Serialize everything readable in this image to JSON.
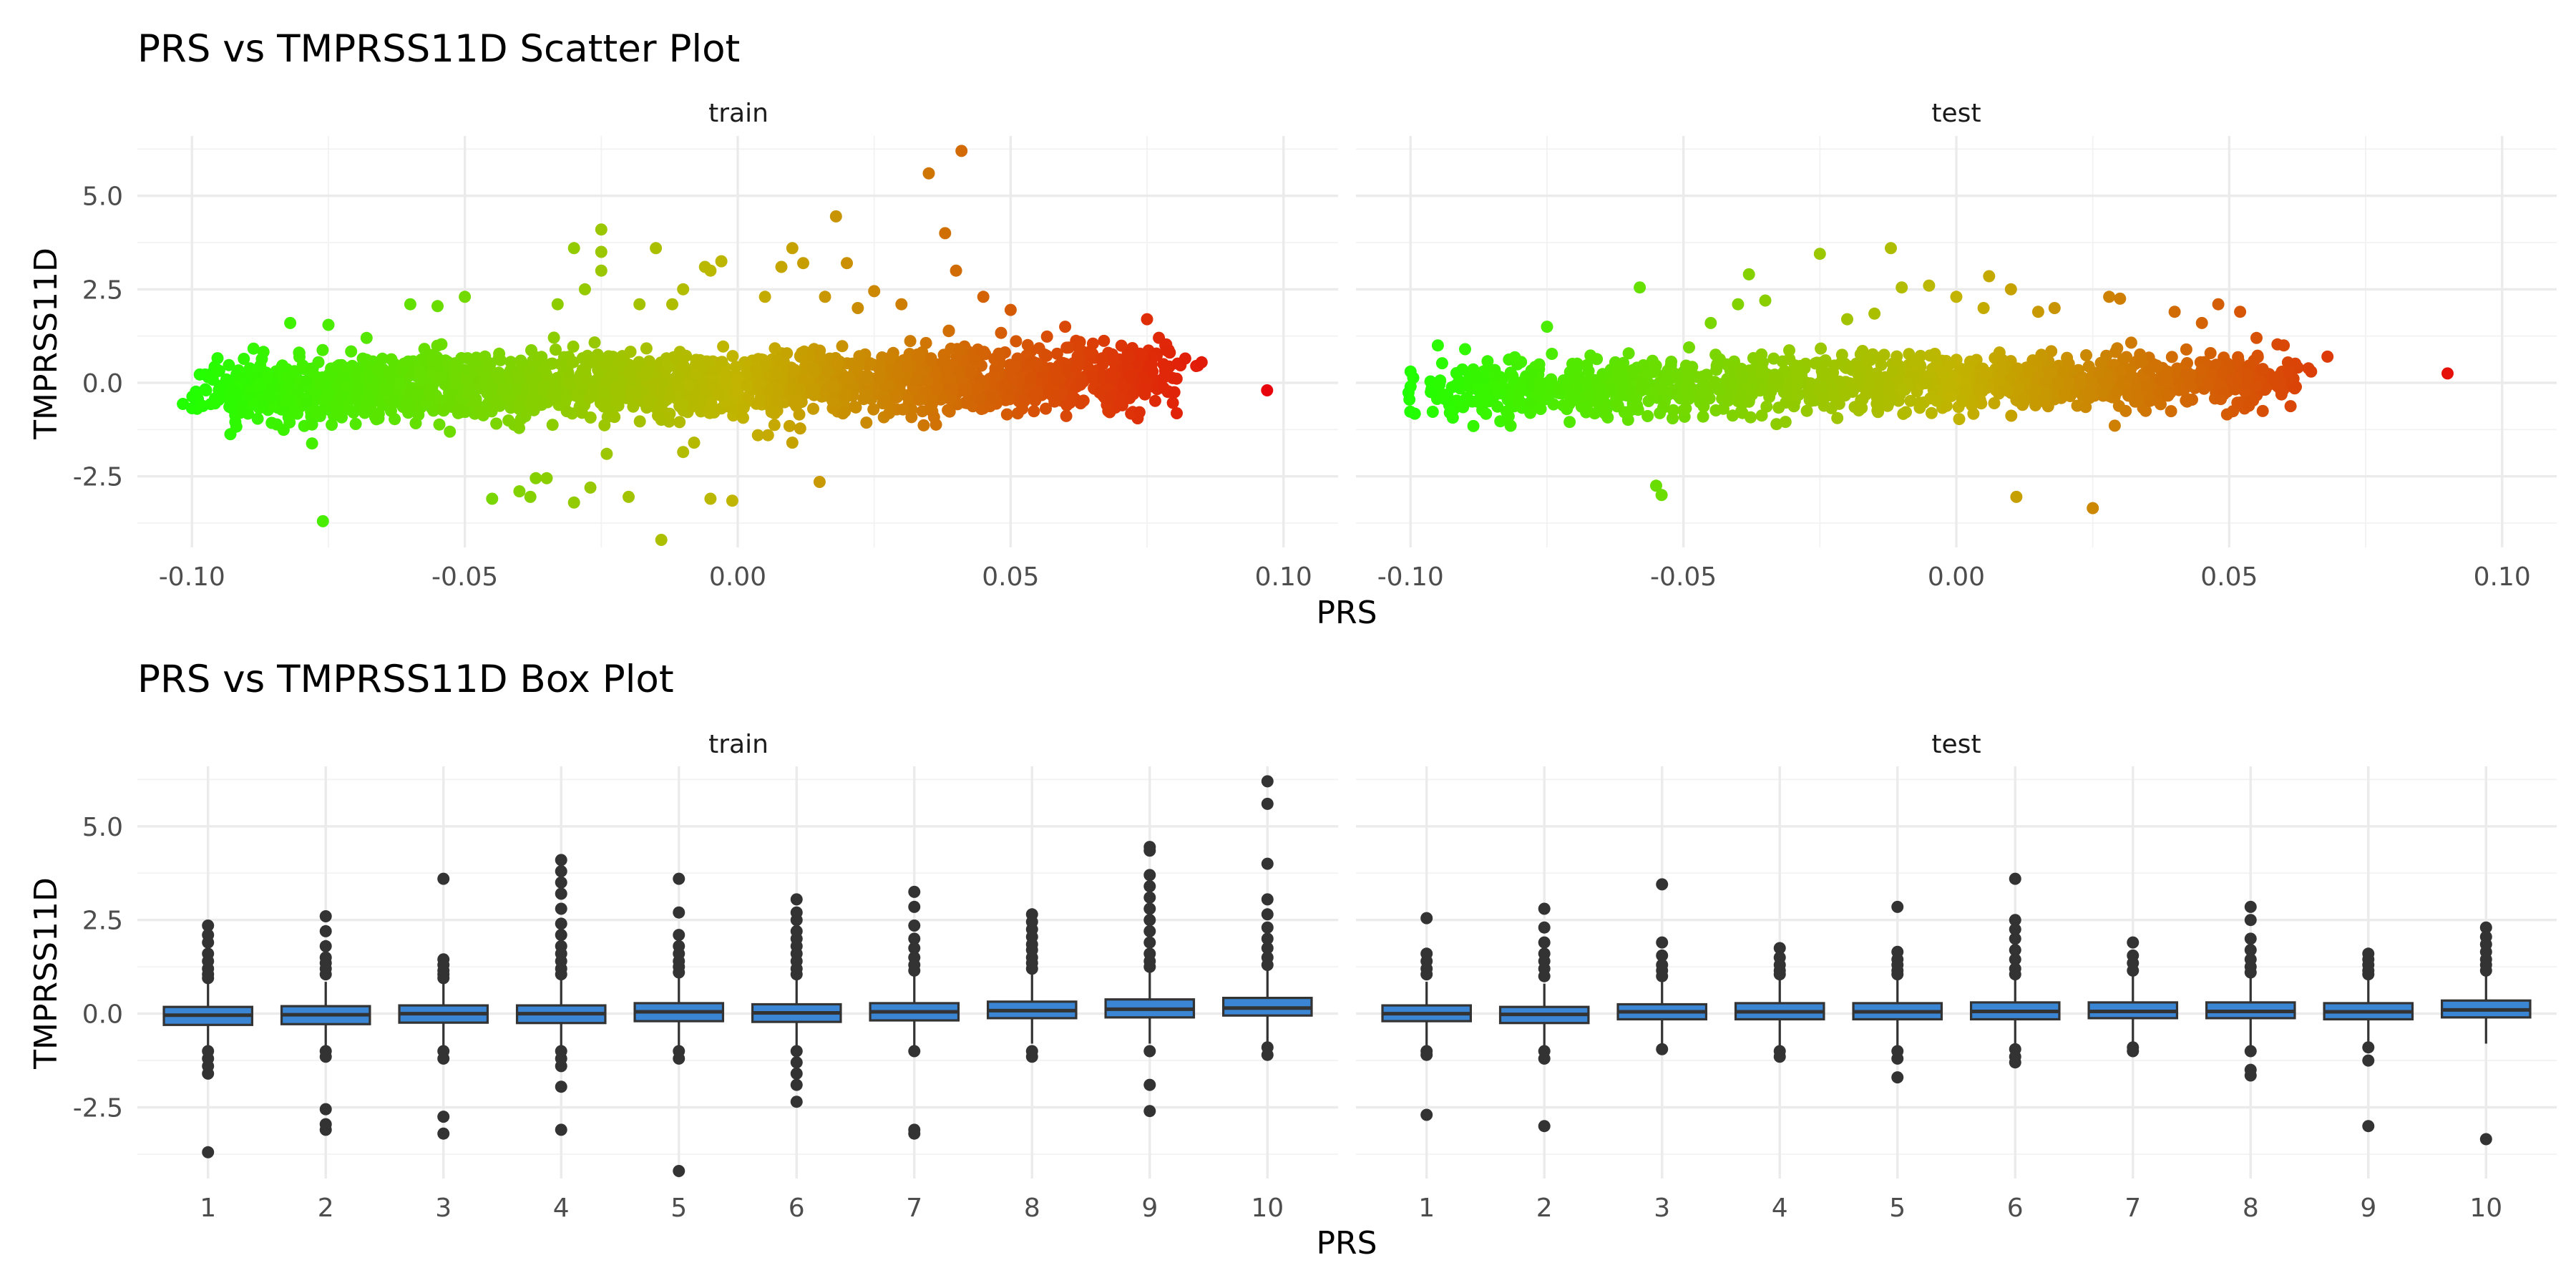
{
  "chart_data": [
    {
      "type": "scatter",
      "title": "PRS vs TMPRSS11D Scatter Plot",
      "xlabel": "PRS",
      "ylabel": "TMPRSS11D",
      "xlim": [
        -0.11,
        0.11
      ],
      "ylim": [
        -4.4,
        6.6
      ],
      "x_ticks": [
        -0.1,
        -0.05,
        0.0,
        0.05,
        0.1
      ],
      "x_tick_labels": [
        "-0.10",
        "-0.05",
        "0.00",
        "0.05",
        "0.10"
      ],
      "y_ticks": [
        -2.5,
        0.0,
        2.5,
        5.0
      ],
      "y_tick_labels": [
        "-2.5",
        "0.0",
        "2.5",
        "5.0"
      ],
      "grid": true,
      "legend": "none",
      "color_gradient": {
        "low": "#22ff00",
        "mid": "#c2b400",
        "high": "#e8000b"
      },
      "facets": [
        {
          "label": "train",
          "bulk": {
            "n": 2200,
            "x_range": [
              -0.095,
              0.078
            ],
            "spread": 0.42
          },
          "points": [
            [
              -0.1,
              -0.68
            ],
            [
              -0.098,
              -0.62
            ],
            [
              -0.095,
              0.32
            ],
            [
              -0.093,
              -0.5
            ],
            [
              -0.082,
              1.6
            ],
            [
              -0.078,
              -1.62
            ],
            [
              -0.076,
              -3.7
            ],
            [
              -0.075,
              1.55
            ],
            [
              -0.07,
              -1.1
            ],
            [
              -0.068,
              1.2
            ],
            [
              -0.06,
              2.1
            ],
            [
              -0.055,
              2.05
            ],
            [
              -0.05,
              2.3
            ],
            [
              -0.045,
              -3.1
            ],
            [
              -0.04,
              -2.9
            ],
            [
              -0.038,
              -3.05
            ],
            [
              -0.037,
              -2.55
            ],
            [
              -0.035,
              -2.55
            ],
            [
              -0.033,
              2.1
            ],
            [
              -0.03,
              3.6
            ],
            [
              -0.03,
              -3.2
            ],
            [
              -0.028,
              2.5
            ],
            [
              -0.027,
              -2.8
            ],
            [
              -0.025,
              4.1
            ],
            [
              -0.025,
              3.5
            ],
            [
              -0.025,
              3.0
            ],
            [
              -0.024,
              -1.9
            ],
            [
              -0.02,
              -3.05
            ],
            [
              -0.018,
              2.1
            ],
            [
              -0.015,
              3.6
            ],
            [
              -0.014,
              -4.2
            ],
            [
              -0.012,
              2.1
            ],
            [
              -0.01,
              2.5
            ],
            [
              -0.01,
              -1.85
            ],
            [
              -0.008,
              -1.6
            ],
            [
              -0.006,
              3.1
            ],
            [
              -0.005,
              3.0
            ],
            [
              -0.005,
              -3.1
            ],
            [
              -0.003,
              3.25
            ],
            [
              -0.001,
              -3.15
            ],
            [
              0.005,
              2.3
            ],
            [
              0.008,
              3.1
            ],
            [
              0.01,
              3.6
            ],
            [
              0.01,
              -1.6
            ],
            [
              0.012,
              3.2
            ],
            [
              0.015,
              -2.65
            ],
            [
              0.016,
              2.3
            ],
            [
              0.018,
              4.45
            ],
            [
              0.02,
              3.2
            ],
            [
              0.022,
              2.0
            ],
            [
              0.025,
              2.45
            ],
            [
              0.03,
              2.1
            ],
            [
              0.035,
              5.6
            ],
            [
              0.038,
              4.0
            ],
            [
              0.04,
              3.0
            ],
            [
              0.041,
              6.2
            ],
            [
              0.045,
              2.3
            ],
            [
              0.05,
              1.95
            ],
            [
              0.06,
              1.5
            ],
            [
              0.07,
              -0.5
            ],
            [
              0.072,
              0.2
            ],
            [
              0.075,
              1.7
            ],
            [
              0.076,
              0.3
            ],
            [
              0.078,
              0.5
            ],
            [
              0.08,
              -0.25
            ],
            [
              0.082,
              0.65
            ],
            [
              0.084,
              0.45
            ],
            [
              0.085,
              0.55
            ],
            [
              0.097,
              -0.2
            ]
          ]
        },
        {
          "label": "test",
          "bulk": {
            "n": 1300,
            "x_range": [
              -0.095,
              0.06
            ],
            "spread": 0.38
          },
          "points": [
            [
              -0.1,
              0.3
            ],
            [
              -0.1,
              -0.1
            ],
            [
              -0.095,
              1.0
            ],
            [
              -0.09,
              0.9
            ],
            [
              -0.075,
              1.5
            ],
            [
              -0.058,
              2.55
            ],
            [
              -0.055,
              -2.75
            ],
            [
              -0.054,
              -3.0
            ],
            [
              -0.045,
              1.6
            ],
            [
              -0.04,
              2.1
            ],
            [
              -0.038,
              2.9
            ],
            [
              -0.035,
              2.2
            ],
            [
              -0.025,
              3.45
            ],
            [
              -0.02,
              1.7
            ],
            [
              -0.015,
              1.85
            ],
            [
              -0.012,
              3.6
            ],
            [
              -0.01,
              2.55
            ],
            [
              -0.005,
              2.6
            ],
            [
              0.0,
              2.3
            ],
            [
              0.005,
              2.0
            ],
            [
              0.006,
              2.85
            ],
            [
              0.01,
              2.5
            ],
            [
              0.011,
              -3.05
            ],
            [
              0.015,
              1.9
            ],
            [
              0.018,
              2.0
            ],
            [
              0.025,
              -3.35
            ],
            [
              0.028,
              2.3
            ],
            [
              0.03,
              2.25
            ],
            [
              0.04,
              1.9
            ],
            [
              0.045,
              1.6
            ],
            [
              0.048,
              2.1
            ],
            [
              0.052,
              1.9
            ],
            [
              0.055,
              1.2
            ],
            [
              0.06,
              1.0
            ],
            [
              0.062,
              -0.15
            ],
            [
              0.065,
              0.3
            ],
            [
              0.068,
              0.7
            ],
            [
              0.09,
              0.25
            ]
          ]
        }
      ]
    },
    {
      "type": "box",
      "title": "PRS vs TMPRSS11D Box Plot",
      "xlabel": "PRS",
      "ylabel": "TMPRSS11D",
      "categories": [
        "1",
        "2",
        "3",
        "4",
        "5",
        "6",
        "7",
        "8",
        "9",
        "10"
      ],
      "ylim": [
        -4.4,
        6.6
      ],
      "y_ticks": [
        -2.5,
        0.0,
        2.5,
        5.0
      ],
      "y_tick_labels": [
        "-2.5",
        "0.0",
        "2.5",
        "5.0"
      ],
      "box_fill": "#3a86d4",
      "grid": true,
      "facets": [
        {
          "label": "train",
          "boxes": [
            {
              "q1": -0.3,
              "median": -0.04,
              "q3": 0.18,
              "lower": -0.95,
              "upper": 0.8,
              "outliers": [
                2.35,
                2.1,
                1.9,
                1.6,
                1.4,
                1.2,
                1.05,
                0.95,
                -1.0,
                -1.2,
                -1.4,
                -1.6,
                -3.7
              ]
            },
            {
              "q1": -0.28,
              "median": -0.03,
              "q3": 0.2,
              "lower": -0.95,
              "upper": 0.85,
              "outliers": [
                2.6,
                2.2,
                1.8,
                1.5,
                1.35,
                1.2,
                1.05,
                -1.0,
                -1.15,
                -2.55,
                -2.95,
                -3.1
              ]
            },
            {
              "q1": -0.24,
              "median": 0.0,
              "q3": 0.22,
              "lower": -0.9,
              "upper": 0.9,
              "outliers": [
                3.6,
                1.45,
                1.3,
                1.15,
                1.05,
                0.95,
                -1.0,
                -1.2,
                -2.75,
                -3.2
              ]
            },
            {
              "q1": -0.25,
              "median": 0.0,
              "q3": 0.22,
              "lower": -0.9,
              "upper": 0.9,
              "outliers": [
                4.1,
                3.8,
                3.5,
                3.2,
                2.8,
                2.4,
                2.1,
                1.8,
                1.6,
                1.4,
                1.2,
                1.05,
                -1.0,
                -1.2,
                -1.4,
                -1.95,
                -3.1
              ]
            },
            {
              "q1": -0.2,
              "median": 0.05,
              "q3": 0.28,
              "lower": -0.85,
              "upper": 0.95,
              "outliers": [
                3.6,
                2.7,
                2.1,
                1.8,
                1.6,
                1.4,
                1.25,
                1.1,
                -1.0,
                -1.2,
                -4.2
              ]
            },
            {
              "q1": -0.22,
              "median": 0.02,
              "q3": 0.25,
              "lower": -0.9,
              "upper": 0.95,
              "outliers": [
                3.05,
                2.7,
                2.5,
                2.2,
                2.0,
                1.8,
                1.6,
                1.4,
                1.2,
                1.05,
                -1.0,
                -1.3,
                -1.6,
                -1.9,
                -2.35
              ]
            },
            {
              "q1": -0.18,
              "median": 0.05,
              "q3": 0.28,
              "lower": -0.85,
              "upper": 1.0,
              "outliers": [
                3.25,
                2.85,
                2.35,
                2.0,
                1.75,
                1.5,
                1.3,
                1.15,
                -1.0,
                -3.1,
                -3.2
              ]
            },
            {
              "q1": -0.12,
              "median": 0.08,
              "q3": 0.32,
              "lower": -0.8,
              "upper": 1.05,
              "outliers": [
                2.65,
                2.45,
                2.25,
                2.05,
                1.85,
                1.7,
                1.5,
                1.35,
                1.2,
                -1.0,
                -1.15
              ]
            },
            {
              "q1": -0.1,
              "median": 0.12,
              "q3": 0.38,
              "lower": -0.8,
              "upper": 1.1,
              "outliers": [
                4.45,
                4.35,
                3.7,
                3.4,
                3.1,
                2.8,
                2.5,
                2.2,
                1.9,
                1.6,
                1.4,
                1.25,
                -1.0,
                -1.9,
                -2.6
              ]
            },
            {
              "q1": -0.05,
              "median": 0.15,
              "q3": 0.42,
              "lower": -0.75,
              "upper": 1.15,
              "outliers": [
                6.2,
                5.6,
                4.0,
                3.05,
                2.65,
                2.3,
                2.0,
                1.75,
                1.5,
                1.3,
                -0.9,
                -1.1
              ]
            }
          ]
        },
        {
          "label": "test",
          "boxes": [
            {
              "q1": -0.2,
              "median": 0.0,
              "q3": 0.22,
              "lower": -0.85,
              "upper": 0.85,
              "outliers": [
                2.55,
                1.6,
                1.4,
                1.2,
                1.05,
                -1.0,
                -1.1,
                -2.7
              ]
            },
            {
              "q1": -0.25,
              "median": -0.02,
              "q3": 0.18,
              "lower": -0.95,
              "upper": 0.8,
              "outliers": [
                2.8,
                2.3,
                1.9,
                1.6,
                1.4,
                1.2,
                1.0,
                -1.0,
                -1.2,
                -3.0
              ]
            },
            {
              "q1": -0.15,
              "median": 0.05,
              "q3": 0.25,
              "lower": -0.8,
              "upper": 0.9,
              "outliers": [
                3.45,
                1.9,
                1.55,
                1.3,
                1.15,
                1.0,
                -0.95
              ]
            },
            {
              "q1": -0.15,
              "median": 0.05,
              "q3": 0.28,
              "lower": -0.85,
              "upper": 0.95,
              "outliers": [
                1.75,
                1.5,
                1.3,
                1.15,
                1.05,
                -1.0,
                -1.15
              ]
            },
            {
              "q1": -0.15,
              "median": 0.05,
              "q3": 0.28,
              "lower": -0.85,
              "upper": 0.95,
              "outliers": [
                2.85,
                1.65,
                1.45,
                1.3,
                1.15,
                1.05,
                -1.0,
                -1.2,
                -1.7
              ]
            },
            {
              "q1": -0.15,
              "median": 0.06,
              "q3": 0.3,
              "lower": -0.85,
              "upper": 1.0,
              "outliers": [
                3.6,
                2.5,
                2.25,
                2.0,
                1.7,
                1.45,
                1.2,
                1.05,
                -0.95,
                -1.15,
                -1.3
              ]
            },
            {
              "q1": -0.12,
              "median": 0.06,
              "q3": 0.3,
              "lower": -0.8,
              "upper": 1.0,
              "outliers": [
                1.9,
                1.55,
                1.35,
                1.15,
                -0.9,
                -1.0
              ]
            },
            {
              "q1": -0.12,
              "median": 0.06,
              "q3": 0.3,
              "lower": -0.85,
              "upper": 1.0,
              "outliers": [
                2.85,
                2.5,
                2.0,
                1.7,
                1.45,
                1.25,
                1.1,
                -1.0,
                -1.5,
                -1.65
              ]
            },
            {
              "q1": -0.15,
              "median": 0.05,
              "q3": 0.28,
              "lower": -0.85,
              "upper": 0.95,
              "outliers": [
                1.6,
                1.45,
                1.3,
                1.15,
                1.05,
                -0.9,
                -1.25,
                -3.0
              ]
            },
            {
              "q1": -0.1,
              "median": 0.1,
              "q3": 0.35,
              "lower": -0.8,
              "upper": 1.05,
              "outliers": [
                2.3,
                2.05,
                1.85,
                1.65,
                1.45,
                1.3,
                1.15,
                -3.35
              ]
            }
          ]
        }
      ]
    }
  ]
}
